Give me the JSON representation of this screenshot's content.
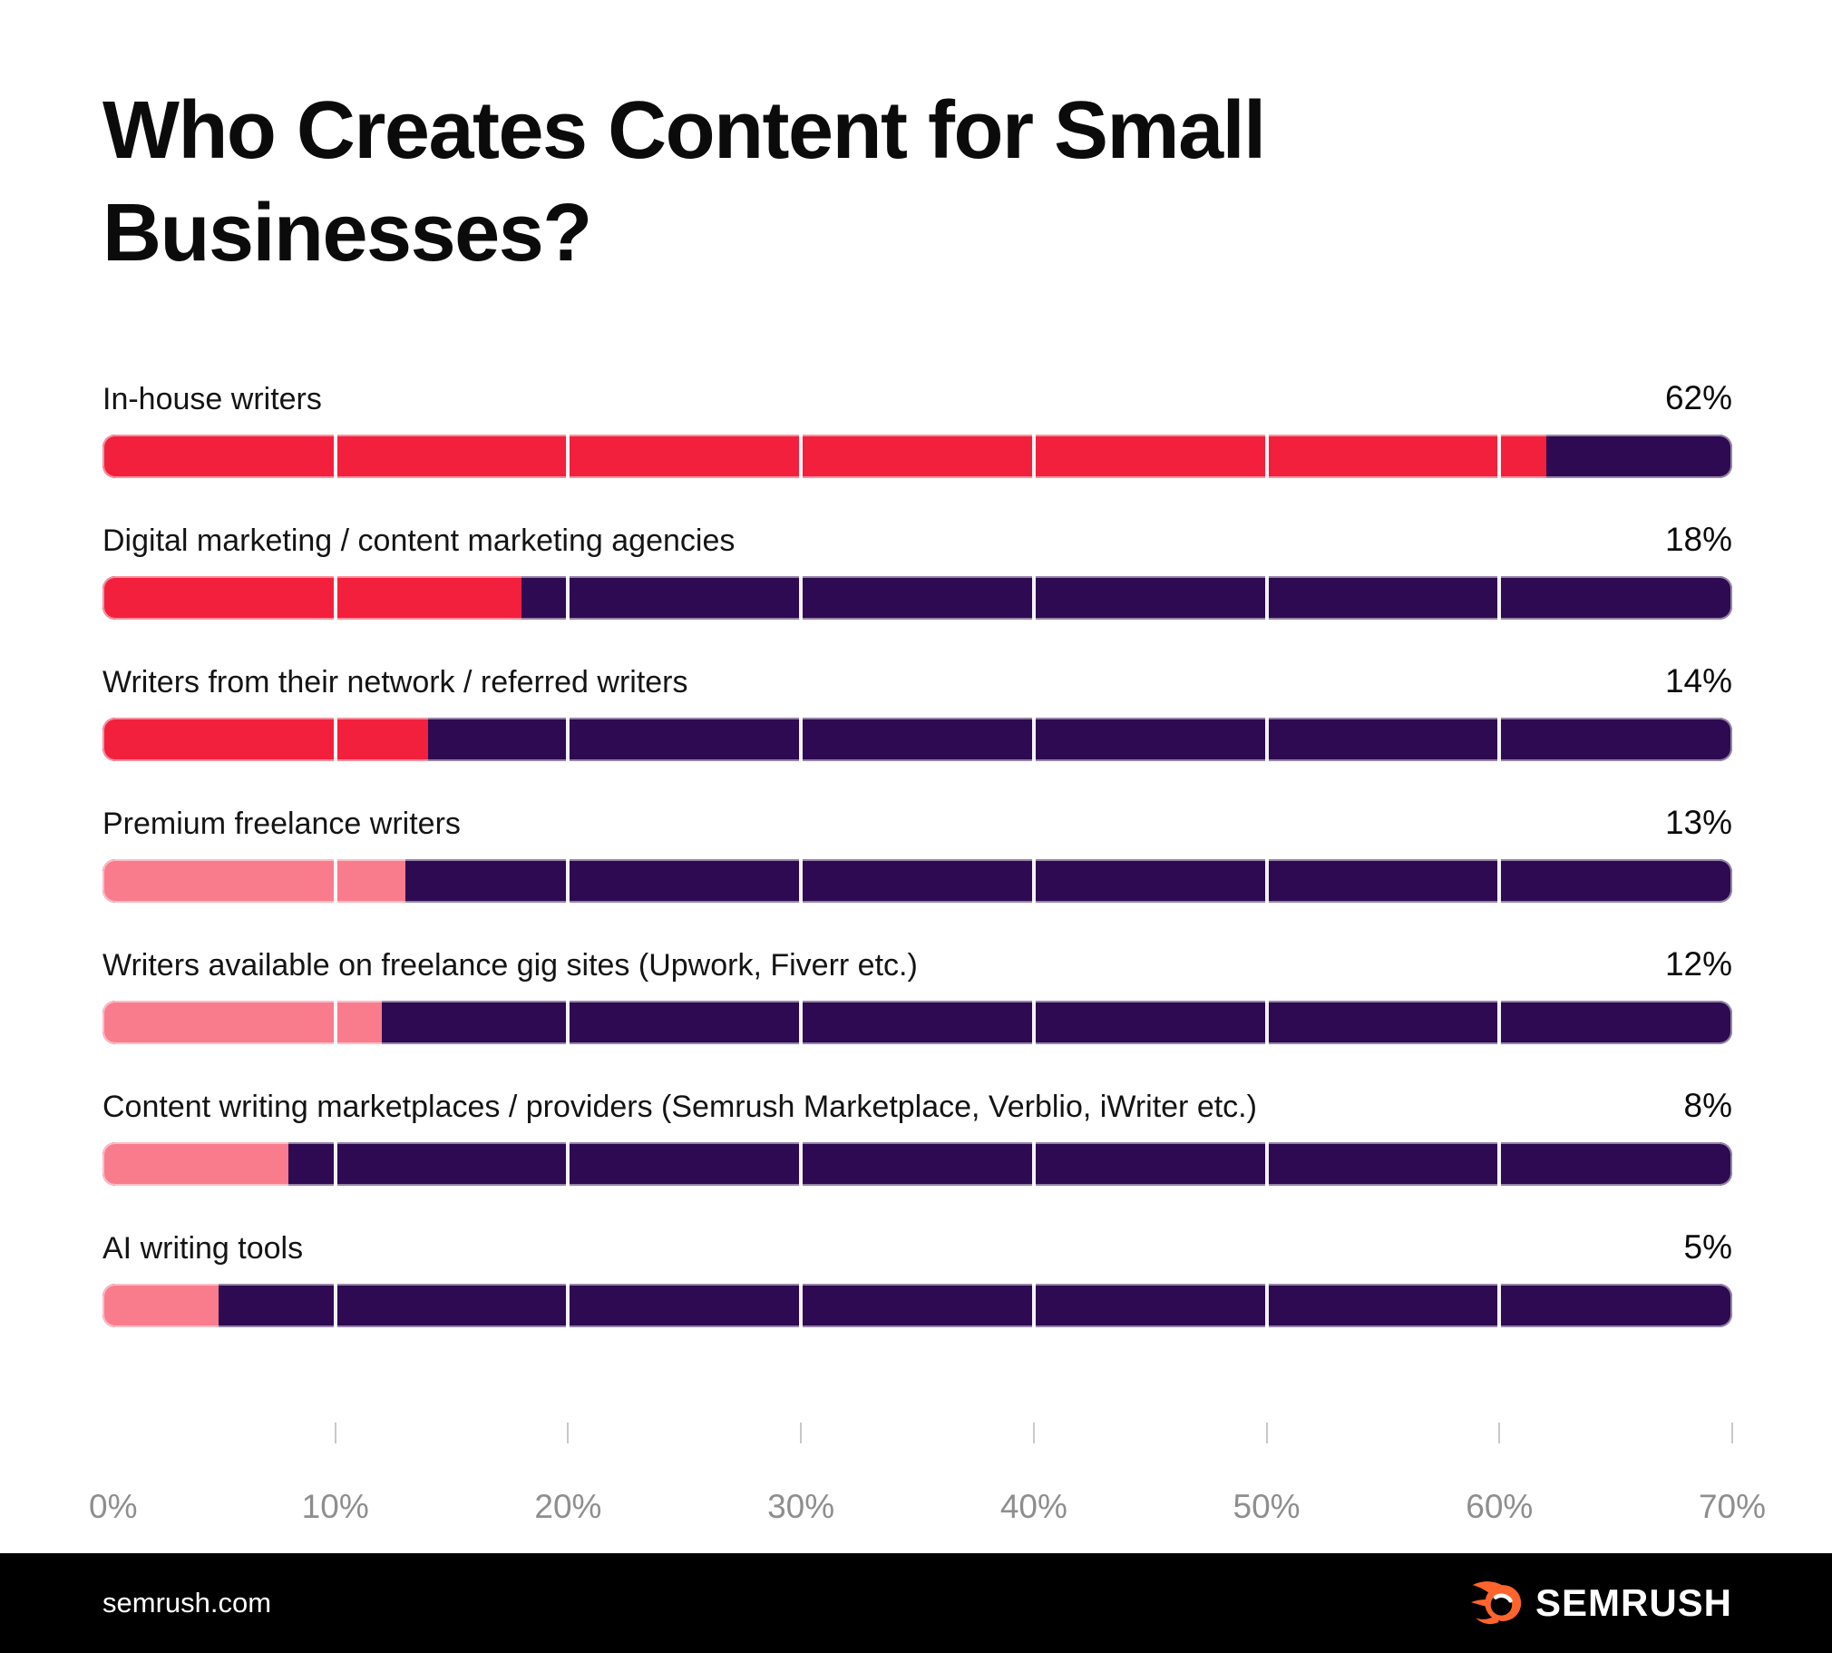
{
  "title": "Who Creates Content for Small Businesses?",
  "chart_data": {
    "type": "bar",
    "orientation": "horizontal",
    "title": "Who Creates Content for Small Businesses?",
    "unit": "%",
    "axis_max": 70,
    "grid": true,
    "x_ticks": [
      "0%",
      "10%",
      "20%",
      "30%",
      "40%",
      "50%",
      "60%",
      "70%"
    ],
    "categories": [
      "In-house writers",
      "Digital marketing / content marketing agencies",
      "Writers from their network / referred writers",
      "Premium freelance writers",
      "Writers available on freelance gig sites (Upwork, Fiverr etc.)",
      "Content writing marketplaces / providers (Semrush Marketplace, Verblio, iWriter etc.)",
      "AI writing tools"
    ],
    "values": [
      62,
      18,
      14,
      13,
      12,
      8,
      5
    ],
    "value_labels": [
      "62%",
      "18%",
      "14%",
      "13%",
      "12%",
      "8%",
      "5%"
    ],
    "bar_fill_styles": [
      "red",
      "red",
      "red",
      "pink",
      "pink",
      "pink",
      "pink"
    ]
  },
  "colors": {
    "red": "#f2203d",
    "pink": "#f97c8d",
    "track_purple": "#2d0a51",
    "axis_text": "#8e8e8e",
    "tick_gray": "#c8c8c8",
    "footer_bg": "#000000",
    "brand_orange": "#ff642d",
    "text_dark": "#0b0b0b"
  },
  "footer": {
    "site": "semrush.com",
    "brand": "SEMRUSH",
    "logo_icon": "semrush-flame-icon"
  }
}
